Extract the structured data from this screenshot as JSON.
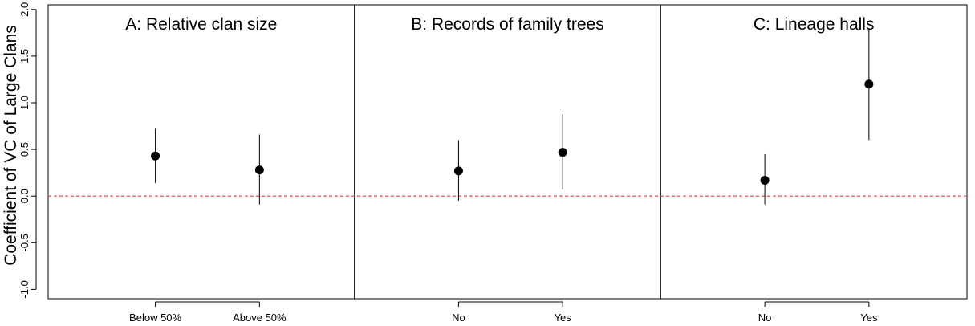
{
  "chart_data": {
    "type": "scatter",
    "ylabel": "Coefficient of VC of Large Clans",
    "ylim": [
      -1.1,
      2.05
    ],
    "yticks": [
      "-1.0",
      "-0.5",
      "0.0",
      "0.5",
      "1.0",
      "1.5",
      "2.0"
    ],
    "reference_line": {
      "y": 0.0,
      "color": "#e8403c",
      "style": "dashed"
    },
    "grid": false,
    "panels": [
      {
        "title": "A: Relative clan size",
        "categories": [
          "Below 50%",
          "Above 50%"
        ],
        "estimates": [
          0.43,
          0.28
        ],
        "lower": [
          0.14,
          -0.09
        ],
        "upper": [
          0.72,
          0.66
        ]
      },
      {
        "title": "B: Records of family trees",
        "categories": [
          "No",
          "Yes"
        ],
        "estimates": [
          0.27,
          0.47
        ],
        "lower": [
          -0.05,
          0.07
        ],
        "upper": [
          0.6,
          0.88
        ]
      },
      {
        "title": "C: Lineage halls",
        "categories": [
          "No",
          "Yes"
        ],
        "estimates": [
          0.17,
          1.2
        ],
        "lower": [
          -0.09,
          0.6
        ],
        "upper": [
          0.45,
          1.79
        ]
      }
    ]
  }
}
